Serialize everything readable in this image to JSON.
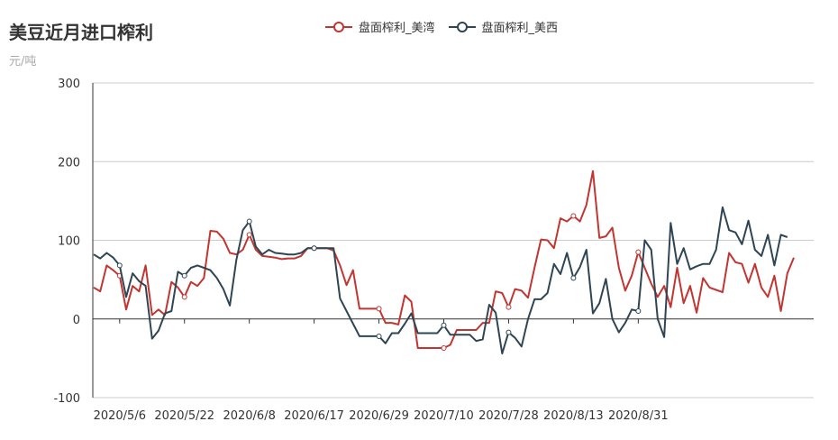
{
  "title": "美豆近月进口榨利",
  "subtitle": "元/吨",
  "legend": [
    {
      "name": "盘面榨利_美湾",
      "color": "#c23531"
    },
    {
      "name": "盘面榨利_美西",
      "color": "#2f4554"
    }
  ],
  "chart_data": {
    "type": "line",
    "title": "美豆近月进口榨利",
    "ylabel": "元/吨",
    "ylim": [
      -100,
      300
    ],
    "yticks": [
      -100,
      0,
      100,
      200,
      300
    ],
    "grid": true,
    "legend_position": "top-center",
    "x_labels": [
      "2020/5/6",
      "2020/5/22",
      "2020/6/8",
      "2020/6/17",
      "2020/6/29",
      "2020/7/10",
      "2020/7/28",
      "2020/8/13",
      "2020/8/31"
    ],
    "x_label_index": [
      4,
      14,
      24,
      34,
      44,
      54,
      64,
      74,
      84
    ],
    "series": [
      {
        "name": "盘面榨利_美湾",
        "color": "#c23531",
        "values": [
          40,
          35,
          68,
          62,
          55,
          12,
          42,
          35,
          68,
          5,
          12,
          5,
          47,
          40,
          28,
          47,
          42,
          52,
          112,
          111,
          102,
          84,
          82,
          88,
          107,
          88,
          80,
          79,
          78,
          76,
          77,
          77,
          80,
          90,
          90,
          90,
          90,
          87,
          68,
          43,
          62,
          13,
          13,
          13,
          13,
          -5,
          -5,
          -7,
          30,
          22,
          -37,
          -37,
          -37,
          -37,
          -37,
          -33,
          -14,
          -14,
          -14,
          -14,
          -5,
          -5,
          35,
          33,
          15,
          38,
          36,
          27,
          65,
          101,
          100,
          90,
          128,
          124,
          131,
          124,
          145,
          188,
          103,
          105,
          116,
          65,
          36,
          55,
          85,
          65,
          45,
          28,
          42,
          15,
          65,
          20,
          42,
          8,
          52,
          40,
          37,
          34,
          84,
          72,
          70,
          46,
          70,
          40,
          28,
          55,
          10,
          58,
          78
        ]
      },
      {
        "name": "盘面榨利_美西",
        "color": "#2f4554",
        "values": [
          82,
          77,
          84,
          78,
          68,
          28,
          58,
          48,
          42,
          -25,
          -15,
          7,
          10,
          60,
          55,
          65,
          68,
          65,
          62,
          52,
          38,
          17,
          75,
          113,
          124,
          92,
          82,
          88,
          84,
          83,
          82,
          82,
          84,
          90,
          90,
          90,
          90,
          90,
          26,
          10,
          -6,
          -22,
          -22,
          -22,
          -22,
          -31,
          -18,
          -18,
          -6,
          7,
          -18,
          -18,
          -18,
          -18,
          -8,
          -20,
          -20,
          -20,
          -20,
          -28,
          -26,
          18,
          8,
          -44,
          -17,
          -24,
          -35,
          0,
          25,
          25,
          33,
          70,
          57,
          84,
          52,
          66,
          88,
          7,
          20,
          51,
          0,
          -17,
          -5,
          12,
          10,
          100,
          88,
          0,
          -23,
          122,
          70,
          90,
          63,
          67,
          70,
          70,
          88,
          142,
          113,
          110,
          95,
          125,
          88,
          80,
          107,
          68,
          107,
          104
        ]
      }
    ]
  }
}
